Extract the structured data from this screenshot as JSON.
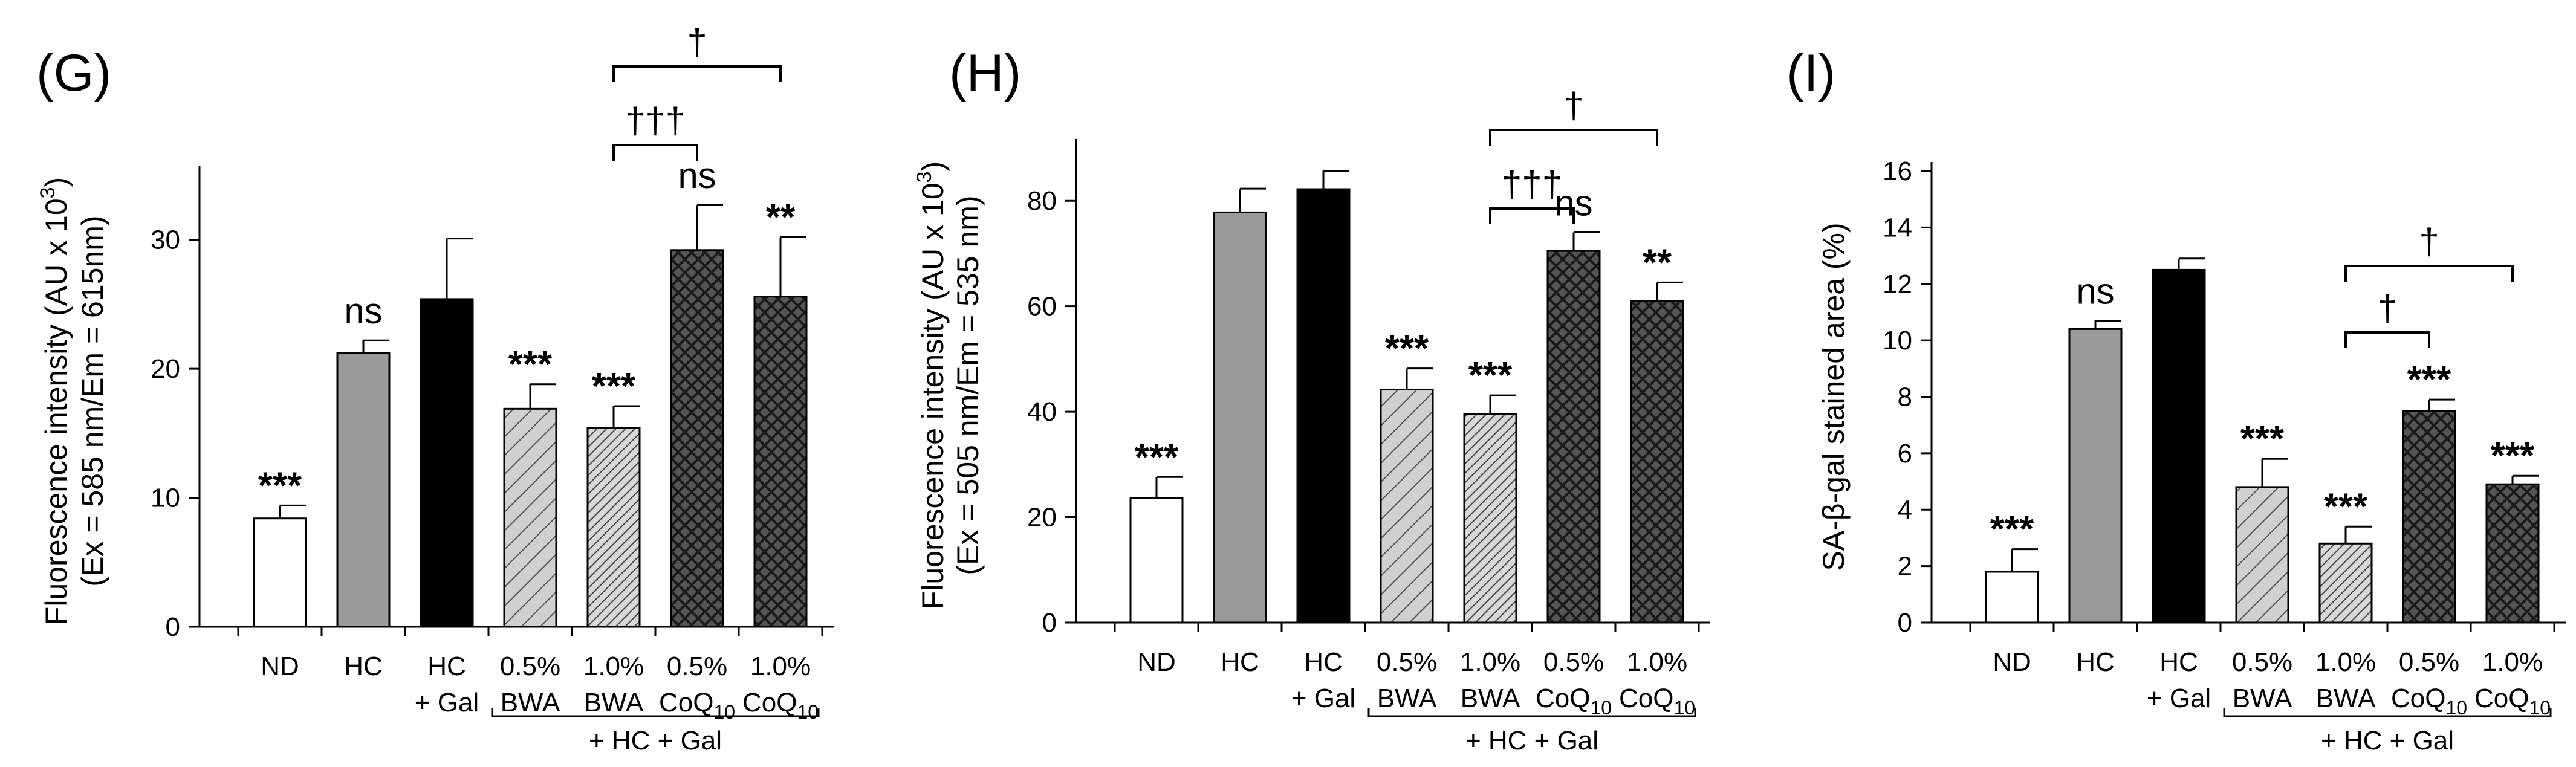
{
  "chart_data": [
    {
      "type": "bar",
      "panel": "(G)",
      "ylabel_line1": "Fluorescence intensity (AU x 10",
      "ylabel_sup": "3",
      "ylabel_line1_end": ")",
      "ylabel_line2": "(Ex = 585 nm/Em = 615nm)",
      "ylim": [
        0,
        35
      ],
      "yticks": [
        0,
        10,
        20,
        30
      ],
      "categories": [
        {
          "line1": "ND",
          "line2": ""
        },
        {
          "line1": "HC",
          "line2": ""
        },
        {
          "line1": "HC",
          "line2": "+ Gal"
        },
        {
          "line1": "0.5%",
          "line2": "BWA"
        },
        {
          "line1": "1.0%",
          "line2": "BWA"
        },
        {
          "line1": "0.5%",
          "line2": "CoQ",
          "sub": "10"
        },
        {
          "line1": "1.0%",
          "line2": "CoQ",
          "sub": "10"
        }
      ],
      "values": [
        8.4,
        21.2,
        25.4,
        16.9,
        15.4,
        29.2,
        25.6
      ],
      "errors": [
        1.0,
        1.0,
        4.7,
        1.9,
        1.7,
        3.5,
        4.6
      ],
      "patterns": [
        "white",
        "gray",
        "black",
        "diag-light",
        "diag-dense",
        "cross",
        "cross"
      ],
      "annotations": [
        "***",
        "ns",
        "",
        "***",
        "***",
        "ns",
        "**"
      ],
      "group_label": "+ HC + Gal",
      "brackets": [
        {
          "from": 4,
          "to": 5,
          "label": "†††"
        },
        {
          "from": 4,
          "to": 6,
          "label": "†"
        }
      ]
    },
    {
      "type": "bar",
      "panel": "(H)",
      "ylabel_line1": "Fluorescence intensity (AU x 10",
      "ylabel_sup": "3",
      "ylabel_line1_end": ")",
      "ylabel_line2": "(Ex = 505 nm/Em = 535 nm)",
      "ylim": [
        0,
        90
      ],
      "yticks": [
        0,
        20,
        40,
        60,
        80
      ],
      "categories": [
        {
          "line1": "ND",
          "line2": ""
        },
        {
          "line1": "HC",
          "line2": ""
        },
        {
          "line1": "HC",
          "line2": "+ Gal"
        },
        {
          "line1": "0.5%",
          "line2": "BWA"
        },
        {
          "line1": "1.0%",
          "line2": "BWA"
        },
        {
          "line1": "0.5%",
          "line2": "CoQ",
          "sub": "10"
        },
        {
          "line1": "1.0%",
          "line2": "CoQ",
          "sub": "10"
        }
      ],
      "values": [
        23.6,
        77.8,
        82.2,
        44.2,
        39.6,
        70.5,
        61.0
      ],
      "errors": [
        4.0,
        4.5,
        3.5,
        4.0,
        3.5,
        3.5,
        3.5
      ],
      "patterns": [
        "white",
        "gray",
        "black",
        "diag-light",
        "diag-dense",
        "cross",
        "cross"
      ],
      "annotations": [
        "***",
        "",
        "",
        "***",
        "***",
        "ns",
        "**"
      ],
      "group_label": "+ HC + Gal",
      "brackets": [
        {
          "from": 4,
          "to": 5,
          "label": "†††"
        },
        {
          "from": 4,
          "to": 6,
          "label": "†"
        }
      ]
    },
    {
      "type": "bar",
      "panel": "(I)",
      "ylabel_line1": "SA-β-gal stained area (%)",
      "ylabel_sup": "",
      "ylabel_line1_end": "",
      "ylabel_line2": "",
      "ylim": [
        0,
        16
      ],
      "yticks": [
        0,
        2,
        4,
        6,
        8,
        10,
        12,
        14,
        16
      ],
      "categories": [
        {
          "line1": "ND",
          "line2": ""
        },
        {
          "line1": "HC",
          "line2": ""
        },
        {
          "line1": "HC",
          "line2": "+ Gal"
        },
        {
          "line1": "0.5%",
          "line2": "BWA"
        },
        {
          "line1": "1.0%",
          "line2": "BWA"
        },
        {
          "line1": "0.5%",
          "line2": "CoQ",
          "sub": "10"
        },
        {
          "line1": "1.0%",
          "line2": "CoQ",
          "sub": "10"
        }
      ],
      "values": [
        1.8,
        10.4,
        12.5,
        4.8,
        2.8,
        7.5,
        4.9
      ],
      "errors": [
        0.8,
        0.3,
        0.4,
        1.0,
        0.6,
        0.4,
        0.3
      ],
      "patterns": [
        "white",
        "gray",
        "black",
        "diag-light",
        "diag-dense",
        "cross",
        "cross"
      ],
      "annotations": [
        "***",
        "ns",
        "",
        "***",
        "***",
        "***",
        "***"
      ],
      "group_label": "+ HC + Gal",
      "brackets": [
        {
          "from": 4,
          "to": 5,
          "label": "†"
        },
        {
          "from": 4,
          "to": 6,
          "label": "†"
        }
      ]
    }
  ]
}
